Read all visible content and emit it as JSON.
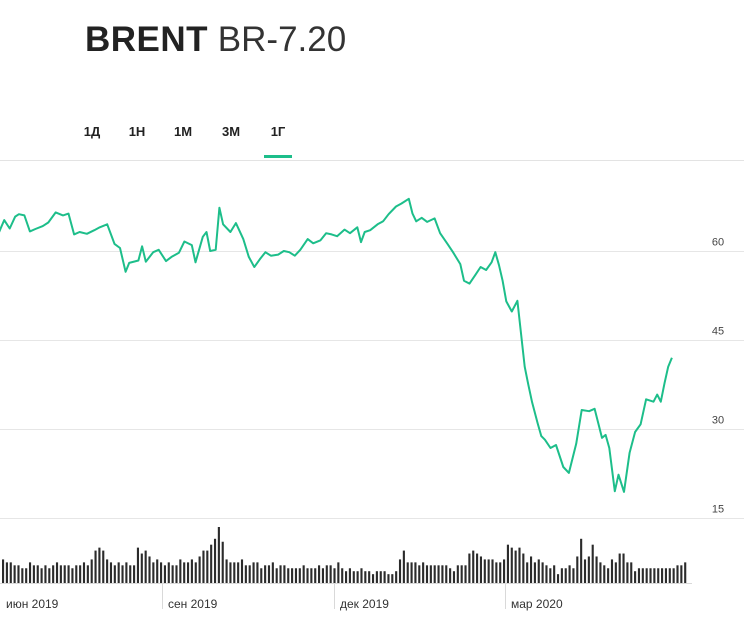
{
  "header": {
    "symbol": "BRENT",
    "code": "BR-7.20"
  },
  "tabs": [
    {
      "label": "1Д",
      "active": false
    },
    {
      "label": "1Н",
      "active": false
    },
    {
      "label": "1М",
      "active": false
    },
    {
      "label": "3М",
      "active": false
    },
    {
      "label": "1Г",
      "active": true
    }
  ],
  "colors": {
    "line": "#1dbe8a",
    "volume": "#2b2b2b",
    "grid": "#e6e6e6",
    "accent": "#1dbe8a"
  },
  "chart_data": {
    "type": "line",
    "title": "",
    "xlabel": "",
    "ylabel": "",
    "y_ticks": [
      15,
      30,
      45,
      60
    ],
    "ylim": [
      15,
      75
    ],
    "grid": true,
    "x_ticks": [
      "июн 2019",
      "сен 2019",
      "дек 2019",
      "мар 2020"
    ],
    "x_tick_dates": [
      "2019-06-01",
      "2019-09-01",
      "2019-12-01",
      "2020-03-01"
    ],
    "xlim": [
      "2019-05-20",
      "2020-05-20"
    ],
    "series": [
      {
        "points": [
          [
            "2019-05-20",
            62.5
          ],
          [
            "2019-05-24",
            62.2
          ],
          [
            "2019-05-28",
            63.0
          ],
          [
            "2019-05-31",
            65.2
          ],
          [
            "2019-06-03",
            63.8
          ],
          [
            "2019-06-06",
            65.8
          ],
          [
            "2019-06-08",
            66.2
          ],
          [
            "2019-06-11",
            66.0
          ],
          [
            "2019-06-14",
            63.3
          ],
          [
            "2019-06-17",
            63.7
          ],
          [
            "2019-06-21",
            64.2
          ],
          [
            "2019-06-24",
            64.8
          ],
          [
            "2019-06-28",
            66.5
          ],
          [
            "2019-07-02",
            66.0
          ],
          [
            "2019-07-05",
            66.3
          ],
          [
            "2019-07-08",
            62.8
          ],
          [
            "2019-07-11",
            63.2
          ],
          [
            "2019-07-15",
            62.9
          ],
          [
            "2019-07-19",
            63.5
          ],
          [
            "2019-07-22",
            64.0
          ],
          [
            "2019-07-26",
            64.5
          ],
          [
            "2019-07-30",
            61.2
          ],
          [
            "2019-08-02",
            60.5
          ],
          [
            "2019-08-05",
            56.5
          ],
          [
            "2019-08-07",
            58.0
          ],
          [
            "2019-08-12",
            58.4
          ],
          [
            "2019-08-14",
            60.8
          ],
          [
            "2019-08-16",
            58.2
          ],
          [
            "2019-08-20",
            59.8
          ],
          [
            "2019-08-23",
            60.2
          ],
          [
            "2019-08-27",
            58.3
          ],
          [
            "2019-08-30",
            59.0
          ],
          [
            "2019-09-03",
            59.7
          ],
          [
            "2019-09-06",
            61.6
          ],
          [
            "2019-09-10",
            61.0
          ],
          [
            "2019-09-12",
            58.1
          ],
          [
            "2019-09-16",
            62.4
          ],
          [
            "2019-09-18",
            63.2
          ],
          [
            "2019-09-20",
            60.0
          ],
          [
            "2019-09-23",
            60.2
          ],
          [
            "2019-09-25",
            67.3
          ],
          [
            "2019-09-27",
            64.5
          ],
          [
            "2019-10-01",
            63.2
          ],
          [
            "2019-10-04",
            64.7
          ],
          [
            "2019-10-08",
            62.0
          ],
          [
            "2019-10-11",
            59.0
          ],
          [
            "2019-10-14",
            57.3
          ],
          [
            "2019-10-17",
            58.6
          ],
          [
            "2019-10-20",
            59.8
          ],
          [
            "2019-10-23",
            59.2
          ],
          [
            "2019-10-27",
            59.4
          ],
          [
            "2019-10-30",
            60.0
          ],
          [
            "2019-11-02",
            59.8
          ],
          [
            "2019-11-05",
            59.2
          ],
          [
            "2019-11-08",
            60.2
          ],
          [
            "2019-11-12",
            62.0
          ],
          [
            "2019-11-15",
            61.3
          ],
          [
            "2019-11-19",
            61.8
          ],
          [
            "2019-11-22",
            63.0
          ],
          [
            "2019-11-25",
            62.8
          ],
          [
            "2019-11-28",
            62.5
          ],
          [
            "2019-12-02",
            63.6
          ],
          [
            "2019-12-05",
            63.0
          ],
          [
            "2019-12-09",
            64.0
          ],
          [
            "2019-12-11",
            61.5
          ],
          [
            "2019-12-13",
            63.2
          ],
          [
            "2019-12-16",
            63.5
          ],
          [
            "2019-12-20",
            64.5
          ],
          [
            "2019-12-23",
            65.0
          ],
          [
            "2019-12-26",
            66.2
          ],
          [
            "2019-12-30",
            67.5
          ],
          [
            "2020-01-02",
            68.0
          ],
          [
            "2020-01-06",
            68.8
          ],
          [
            "2020-01-08",
            66.3
          ],
          [
            "2020-01-10",
            65.0
          ],
          [
            "2020-01-13",
            65.6
          ],
          [
            "2020-01-16",
            64.9
          ],
          [
            "2020-01-20",
            65.5
          ],
          [
            "2020-01-23",
            63.0
          ],
          [
            "2020-01-27",
            61.2
          ],
          [
            "2020-01-30",
            59.8
          ],
          [
            "2020-02-03",
            57.8
          ],
          [
            "2020-02-05",
            55.0
          ],
          [
            "2020-02-08",
            54.5
          ],
          [
            "2020-02-11",
            55.9
          ],
          [
            "2020-02-14",
            57.3
          ],
          [
            "2020-02-17",
            56.8
          ],
          [
            "2020-02-20",
            58.1
          ],
          [
            "2020-02-22",
            59.8
          ],
          [
            "2020-02-24",
            57.6
          ],
          [
            "2020-02-26",
            55.0
          ],
          [
            "2020-02-28",
            51.5
          ],
          [
            "2020-03-02",
            49.8
          ],
          [
            "2020-03-05",
            51.6
          ],
          [
            "2020-03-09",
            40.5
          ],
          [
            "2020-03-11",
            37.4
          ],
          [
            "2020-03-13",
            34.5
          ],
          [
            "2020-03-16",
            31.0
          ],
          [
            "2020-03-18",
            28.8
          ],
          [
            "2020-03-20",
            28.2
          ],
          [
            "2020-03-23",
            26.8
          ],
          [
            "2020-03-26",
            27.3
          ],
          [
            "2020-03-30",
            23.6
          ],
          [
            "2020-04-02",
            22.6
          ],
          [
            "2020-04-06",
            27.5
          ],
          [
            "2020-04-09",
            33.2
          ],
          [
            "2020-04-13",
            33.0
          ],
          [
            "2020-04-16",
            33.4
          ],
          [
            "2020-04-20",
            28.5
          ],
          [
            "2020-04-22",
            29.0
          ],
          [
            "2020-04-24",
            26.8
          ],
          [
            "2020-04-27",
            19.5
          ],
          [
            "2020-04-29",
            22.3
          ],
          [
            "2020-05-02",
            19.4
          ],
          [
            "2020-05-05",
            26.0
          ],
          [
            "2020-05-08",
            29.5
          ],
          [
            "2020-05-11",
            30.8
          ],
          [
            "2020-05-14",
            35.0
          ],
          [
            "2020-05-18",
            34.6
          ],
          [
            "2020-05-20",
            35.8
          ],
          [
            "2020-05-22",
            34.6
          ],
          [
            "2020-05-24",
            37.7
          ],
          [
            "2020-05-26",
            40.5
          ],
          [
            "2020-05-28",
            42.0
          ]
        ]
      }
    ],
    "volume": {
      "note_units": "relative",
      "values": [
        8,
        7,
        7,
        6,
        6,
        5,
        5,
        7,
        6,
        6,
        5,
        6,
        5,
        6,
        7,
        6,
        6,
        6,
        5,
        6,
        6,
        7,
        6,
        8,
        11,
        12,
        11,
        8,
        7,
        6,
        7,
        6,
        7,
        6,
        6,
        12,
        10,
        11,
        9,
        7,
        8,
        7,
        6,
        7,
        6,
        6,
        8,
        7,
        7,
        8,
        7,
        9,
        11,
        11,
        13,
        15,
        19,
        14,
        8,
        7,
        7,
        7,
        8,
        6,
        6,
        7,
        7,
        5,
        6,
        6,
        7,
        5,
        6,
        6,
        5,
        5,
        5,
        5,
        6,
        5,
        5,
        5,
        6,
        5,
        6,
        6,
        5,
        7,
        5,
        4,
        5,
        4,
        4,
        5,
        4,
        4,
        3,
        4,
        4,
        4,
        3,
        3,
        4,
        8,
        11,
        7,
        7,
        7,
        6,
        7,
        6,
        6,
        6,
        6,
        6,
        6,
        5,
        4,
        6,
        6,
        6,
        10,
        11,
        10,
        9,
        8,
        8,
        8,
        7,
        7,
        8,
        13,
        12,
        11,
        12,
        10,
        7,
        9,
        7,
        8,
        7,
        6,
        5,
        6,
        3,
        5,
        5,
        6,
        5,
        9,
        15,
        8,
        9,
        13,
        9,
        7,
        6,
        5,
        8,
        7,
        10,
        10,
        7,
        7,
        4,
        5,
        5,
        5,
        5,
        5,
        5,
        5,
        5,
        5,
        5,
        6,
        6,
        7
      ]
    }
  }
}
